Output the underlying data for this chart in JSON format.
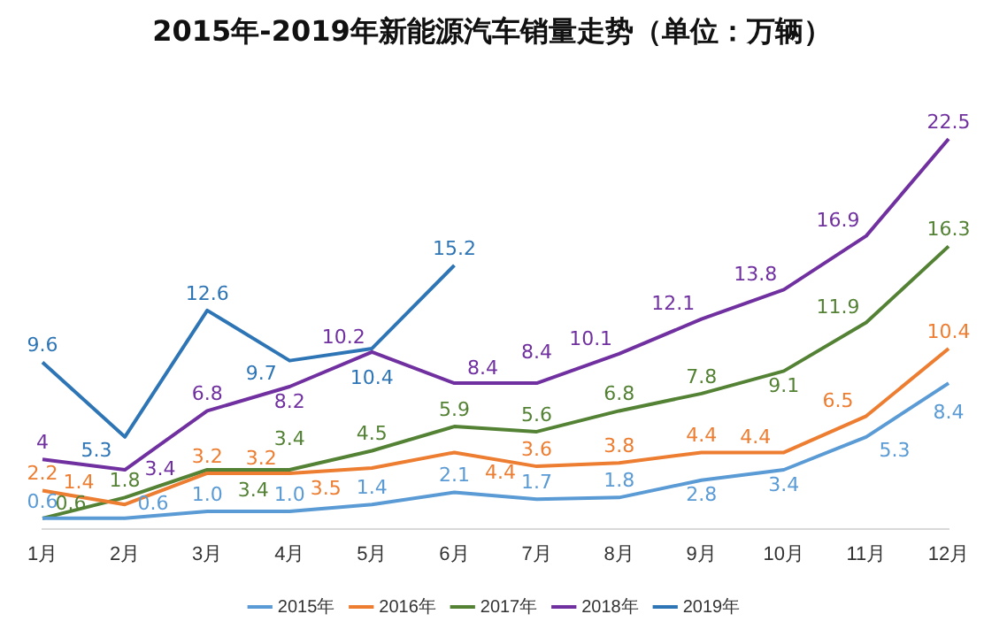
{
  "chart_data": {
    "type": "line",
    "title": "2015年-2019年新能源汽车销量走势（单位：万辆）",
    "categories": [
      "1月",
      "2月",
      "3月",
      "4月",
      "5月",
      "6月",
      "7月",
      "8月",
      "9月",
      "10月",
      "11月",
      "12月"
    ],
    "series": [
      {
        "name": "2015年",
        "color": "#5b9bd5",
        "values": [
          0.6,
          0.6,
          1.0,
          1.0,
          1.4,
          2.1,
          1.7,
          1.8,
          2.8,
          3.4,
          5.3,
          8.4
        ],
        "value_labels": [
          "0.6",
          "0.6",
          "1.0",
          "1.0",
          "1.4",
          "2.1",
          "1.7",
          "1.8",
          "2.8",
          "3.4",
          "5.3",
          "8.4"
        ]
      },
      {
        "name": "2016年",
        "color": "#ed7d31",
        "values": [
          2.2,
          1.4,
          3.2,
          3.2,
          3.5,
          4.4,
          3.6,
          3.8,
          4.4,
          4.4,
          6.5,
          10.4
        ],
        "value_labels": [
          "2.2",
          "1.4",
          "3.2",
          "3.2",
          "3.5",
          "4.4",
          "3.6",
          "3.8",
          "4.4",
          "4.4",
          "6.5",
          "10.4"
        ]
      },
      {
        "name": "2017年",
        "color": "#548235",
        "values": [
          0.6,
          1.8,
          3.4,
          3.4,
          4.5,
          5.9,
          5.6,
          6.8,
          7.8,
          9.1,
          11.9,
          16.3
        ],
        "value_labels": [
          "0.6",
          "1.8",
          "3.4",
          "3.4",
          "4.5",
          "5.9",
          "5.6",
          "6.8",
          "7.8",
          "9.1",
          "11.9",
          "16.3"
        ]
      },
      {
        "name": "2018年",
        "color": "#7030a0",
        "values": [
          4,
          3.4,
          6.8,
          8.2,
          10.2,
          8.4,
          8.4,
          10.1,
          12.1,
          13.8,
          16.9,
          22.5
        ],
        "value_labels": [
          "4",
          "3.4",
          "6.8",
          "8.2",
          "10.2",
          "8.4",
          "8.4",
          "10.1",
          "12.1",
          "13.8",
          "16.9",
          "22.5"
        ]
      },
      {
        "name": "2019年",
        "color": "#2e75b6",
        "values": [
          9.6,
          5.3,
          12.6,
          9.7,
          10.4,
          15.2,
          null,
          null,
          null,
          null,
          null,
          null
        ],
        "value_labels": [
          "9.6",
          "5.3",
          "12.6",
          "9.7",
          "10.4",
          "15.2",
          null,
          null,
          null,
          null,
          null,
          null
        ]
      }
    ],
    "legend": "bottom",
    "grid": false,
    "tick_labels": "x",
    "marker": "none",
    "line_style": "solid"
  }
}
